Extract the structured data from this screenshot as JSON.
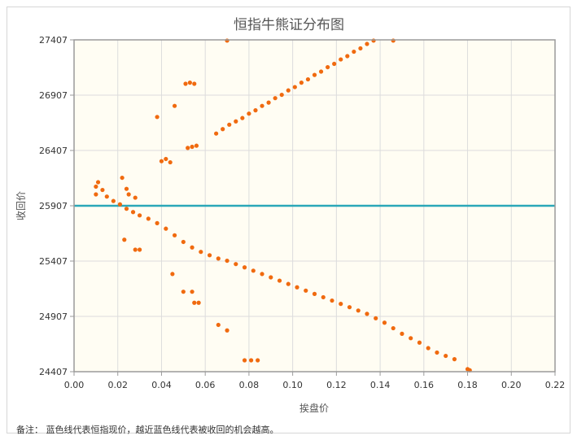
{
  "chart_data": {
    "type": "scatter",
    "title": "恒指牛熊证分布图",
    "xlabel": "挨盘价",
    "ylabel": "收回价",
    "xlim": [
      0.0,
      0.22
    ],
    "ylim": [
      24407,
      27407
    ],
    "x_ticks": [
      "0.00",
      "0.02",
      "0.04",
      "0.06",
      "0.08",
      "0.10",
      "0.12",
      "0.14",
      "0.16",
      "0.18",
      "0.20",
      "0.22"
    ],
    "y_ticks": [
      "24407",
      "24907",
      "25407",
      "25907",
      "26407",
      "26907",
      "27407"
    ],
    "grid": true,
    "reference_line": {
      "y": 25907,
      "color": "#2aa7b8"
    },
    "point_color": "#f06a0f",
    "background_color": "#fffdf3",
    "bull_points": [
      [
        0.04,
        26310
      ],
      [
        0.042,
        26330
      ],
      [
        0.044,
        26300
      ],
      [
        0.052,
        26430
      ],
      [
        0.054,
        26440
      ],
      [
        0.056,
        26450
      ],
      [
        0.065,
        26560
      ],
      [
        0.068,
        26600
      ],
      [
        0.071,
        26640
      ],
      [
        0.074,
        26670
      ],
      [
        0.077,
        26700
      ],
      [
        0.08,
        26740
      ],
      [
        0.083,
        26770
      ],
      [
        0.086,
        26810
      ],
      [
        0.089,
        26840
      ],
      [
        0.092,
        26880
      ],
      [
        0.095,
        26910
      ],
      [
        0.098,
        26950
      ],
      [
        0.101,
        26980
      ],
      [
        0.104,
        27020
      ],
      [
        0.107,
        27050
      ],
      [
        0.11,
        27090
      ],
      [
        0.113,
        27120
      ],
      [
        0.116,
        27160
      ],
      [
        0.119,
        27190
      ],
      [
        0.122,
        27230
      ],
      [
        0.125,
        27260
      ],
      [
        0.128,
        27300
      ],
      [
        0.131,
        27330
      ],
      [
        0.134,
        27370
      ],
      [
        0.137,
        27400
      ],
      [
        0.146,
        27400
      ],
      [
        0.07,
        27400
      ],
      [
        0.038,
        26710
      ],
      [
        0.046,
        26810
      ],
      [
        0.051,
        27010
      ],
      [
        0.053,
        27020
      ],
      [
        0.055,
        27010
      ]
    ],
    "bear_points": [
      [
        0.01,
        26080
      ],
      [
        0.01,
        26010
      ],
      [
        0.011,
        26120
      ],
      [
        0.013,
        26050
      ],
      [
        0.015,
        25990
      ],
      [
        0.018,
        25950
      ],
      [
        0.021,
        25920
      ],
      [
        0.024,
        25880
      ],
      [
        0.027,
        25850
      ],
      [
        0.03,
        25820
      ],
      [
        0.034,
        25790
      ],
      [
        0.038,
        25750
      ],
      [
        0.042,
        25700
      ],
      [
        0.046,
        25640
      ],
      [
        0.05,
        25580
      ],
      [
        0.054,
        25530
      ],
      [
        0.058,
        25490
      ],
      [
        0.062,
        25460
      ],
      [
        0.066,
        25430
      ],
      [
        0.07,
        25410
      ],
      [
        0.074,
        25380
      ],
      [
        0.078,
        25350
      ],
      [
        0.082,
        25320
      ],
      [
        0.086,
        25290
      ],
      [
        0.09,
        25260
      ],
      [
        0.094,
        25230
      ],
      [
        0.098,
        25200
      ],
      [
        0.102,
        25170
      ],
      [
        0.106,
        25140
      ],
      [
        0.11,
        25110
      ],
      [
        0.114,
        25080
      ],
      [
        0.118,
        25050
      ],
      [
        0.122,
        25020
      ],
      [
        0.126,
        24990
      ],
      [
        0.13,
        24960
      ],
      [
        0.134,
        24930
      ],
      [
        0.138,
        24890
      ],
      [
        0.142,
        24850
      ],
      [
        0.146,
        24800
      ],
      [
        0.15,
        24750
      ],
      [
        0.154,
        24710
      ],
      [
        0.158,
        24670
      ],
      [
        0.162,
        24620
      ],
      [
        0.166,
        24580
      ],
      [
        0.17,
        24550
      ],
      [
        0.174,
        24520
      ],
      [
        0.18,
        24430
      ],
      [
        0.181,
        24420
      ],
      [
        0.022,
        26160
      ],
      [
        0.024,
        26060
      ],
      [
        0.025,
        26010
      ],
      [
        0.028,
        25980
      ],
      [
        0.023,
        25600
      ],
      [
        0.028,
        25510
      ],
      [
        0.03,
        25510
      ],
      [
        0.045,
        25290
      ],
      [
        0.05,
        25130
      ],
      [
        0.054,
        25130
      ],
      [
        0.055,
        25030
      ],
      [
        0.057,
        25030
      ],
      [
        0.066,
        24830
      ],
      [
        0.07,
        24780
      ],
      [
        0.078,
        24510
      ],
      [
        0.081,
        24510
      ],
      [
        0.084,
        24510
      ]
    ]
  },
  "footnote": "备注：  蓝色线代表恒指现价，越近蓝色线代表被收回的机会越高。"
}
